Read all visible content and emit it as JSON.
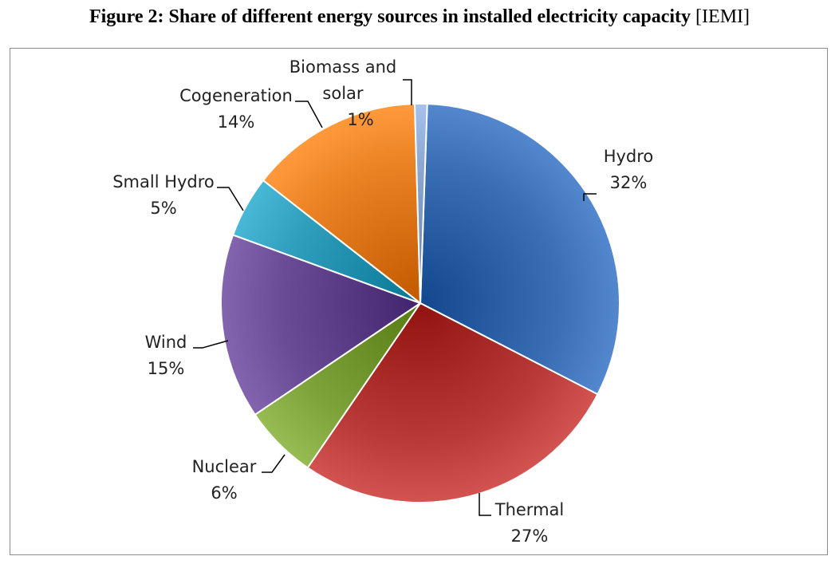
{
  "caption": {
    "bold": "Figure 2: Share of different energy sources in installed electricity capacity",
    "source": "[IEMI]"
  },
  "chart_data": {
    "type": "pie",
    "title": "",
    "slices": [
      {
        "name": "Hydro",
        "value": 32,
        "label": "32%",
        "color": "#3a6fb6"
      },
      {
        "name": "Thermal",
        "value": 27,
        "label": "27%",
        "color": "#b93a37"
      },
      {
        "name": "Nuclear",
        "value": 6,
        "label": "6%",
        "color": "#7ea33a"
      },
      {
        "name": "Wind",
        "value": 15,
        "label": "15%",
        "color": "#6a4c96"
      },
      {
        "name": "Small Hydro",
        "value": 5,
        "label": "5%",
        "color": "#2f9fbd"
      },
      {
        "name": "Cogeneration",
        "value": 14,
        "label": "14%",
        "color": "#ea8123"
      },
      {
        "name": "Biomass and solar",
        "value": 1,
        "label": "1%",
        "color": "#8ea8d4"
      }
    ],
    "legend": "none",
    "labels": "outside-with-leader-lines"
  }
}
